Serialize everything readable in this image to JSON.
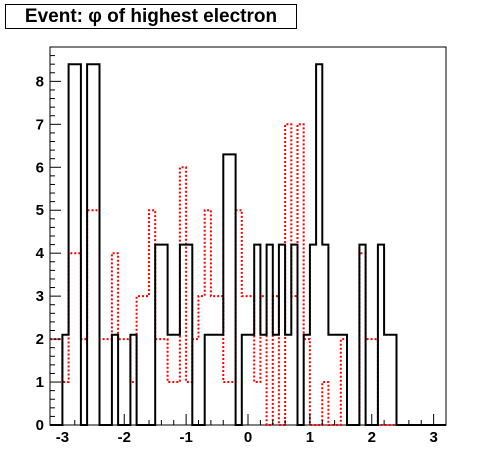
{
  "chart_data": {
    "type": "histogram",
    "title": "Event: φ of highest electron",
    "xlim": [
      -3.2,
      3.2
    ],
    "ylim": [
      0,
      8.8
    ],
    "xticks": [
      "-3",
      "-2",
      "-1",
      "0",
      "1",
      "2",
      "3"
    ],
    "xtick_values": [
      -3,
      -2,
      -1,
      0,
      1,
      2,
      3
    ],
    "yticks": [
      "0",
      "1",
      "2",
      "3",
      "4",
      "5",
      "6",
      "7",
      "8"
    ],
    "ytick_values": [
      0,
      1,
      2,
      3,
      4,
      5,
      6,
      7,
      8
    ],
    "bin_edges": [
      -3.2,
      -3.0,
      -2.9,
      -2.7,
      -2.6,
      -2.4,
      -2.2,
      -2.1,
      -1.9,
      -1.8,
      -1.6,
      -1.5,
      -1.3,
      -1.1,
      -1.0,
      -0.9,
      -0.8,
      -0.7,
      -0.6,
      -0.4,
      -0.2,
      -0.1,
      0.1,
      0.2,
      0.3,
      0.4,
      0.5,
      0.6,
      0.7,
      0.8,
      0.9,
      1.0,
      1.1,
      1.2,
      1.3,
      1.5,
      1.6,
      1.8,
      1.9,
      2.1,
      2.2,
      2.4,
      2.6,
      2.7,
      2.9,
      3.0,
      3.2
    ],
    "series": [
      {
        "color": "#000000",
        "style": "solid",
        "values": [
          0,
          2.1,
          8.4,
          0,
          8.4,
          0,
          2.1,
          0,
          2.1,
          0,
          0,
          4.2,
          2.1,
          4.2,
          4.2,
          0,
          0,
          2.1,
          2.1,
          6.3,
          0,
          2.1,
          4.2,
          2.1,
          4.2,
          2.1,
          4.2,
          2.1,
          4.2,
          0,
          2.1,
          4.2,
          8.4,
          4.2,
          2.1,
          2.1,
          0,
          4.2,
          0,
          4.2,
          2.1,
          0,
          0,
          0,
          0,
          0
        ]
      },
      {
        "color": "#ff0000",
        "style": "dotted",
        "values": [
          2,
          1,
          4,
          2,
          5,
          2,
          4,
          2,
          1,
          3,
          5,
          2,
          1,
          6,
          1,
          2,
          3,
          5,
          3,
          1,
          5,
          3,
          1,
          3,
          0,
          3,
          0,
          7,
          3,
          7,
          2,
          0,
          0,
          1,
          0,
          2,
          0,
          4,
          2,
          0,
          0,
          0,
          0,
          0,
          0,
          0
        ]
      }
    ]
  }
}
